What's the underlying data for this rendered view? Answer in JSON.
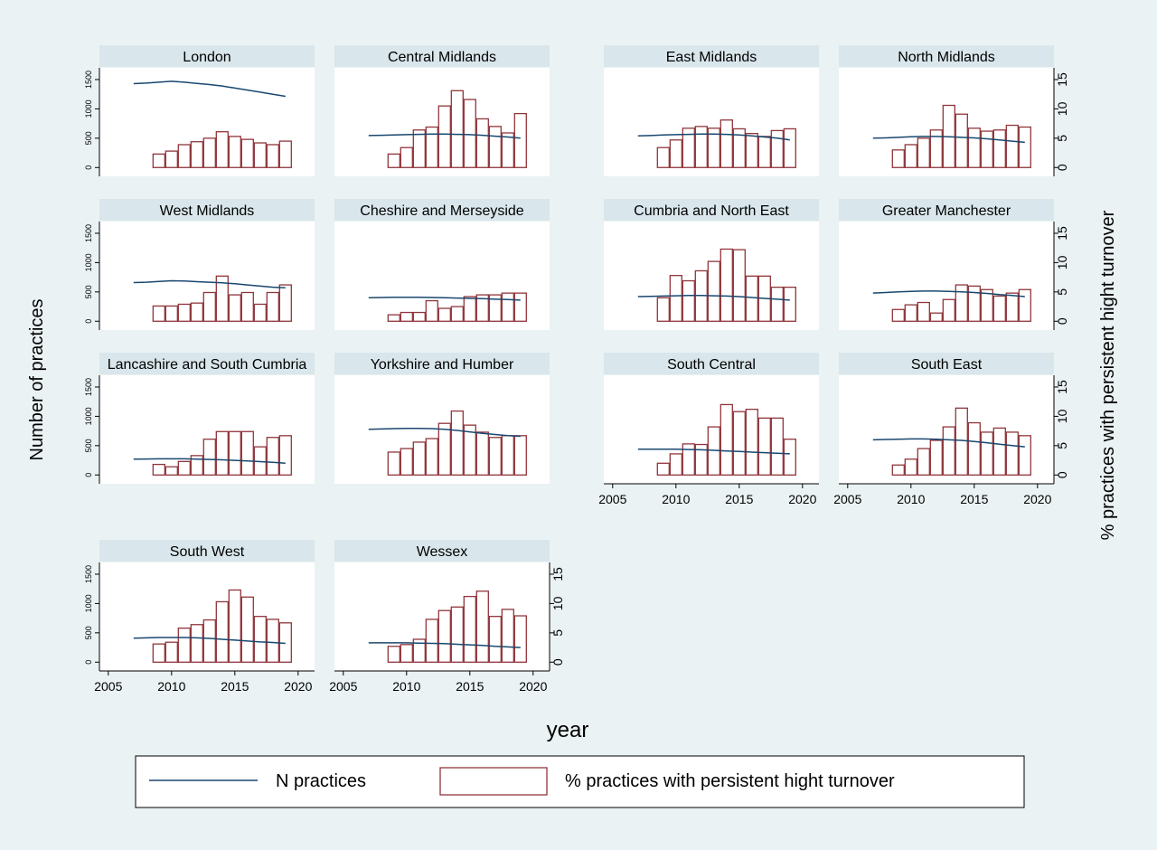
{
  "chart_data": {
    "type": "bar-line-panels",
    "y_label": "Number of practices",
    "y2_label": "% practices with persistent hight turnover",
    "x_label": "year",
    "xlim": [
      2004.3,
      2021.3
    ],
    "xticks": [
      2005,
      2010,
      2015,
      2020
    ],
    "ylim": [
      -150,
      1700
    ],
    "yticks": [
      0,
      500,
      1000,
      1500
    ],
    "y2lim": [
      -1.5,
      17
    ],
    "y2ticks": [
      0,
      5,
      10,
      15
    ],
    "series": [
      {
        "name": "N practices",
        "type": "line",
        "axis": "y",
        "color": "#1a476f",
        "x": [
          2007,
          2008,
          2009,
          2010,
          2011,
          2012,
          2013,
          2014,
          2015,
          2016,
          2017,
          2018,
          2019
        ]
      },
      {
        "name": "% practices with persistent hight turnover",
        "type": "bar",
        "axis": "y2",
        "color": "#90353b",
        "x": [
          2009,
          2010,
          2011,
          2012,
          2013,
          2014,
          2015,
          2016,
          2017,
          2018,
          2019
        ]
      }
    ],
    "panels": [
      {
        "title": "London",
        "values": [
          [
            1430,
            1440,
            1455,
            1470,
            1455,
            1435,
            1415,
            1390,
            1355,
            1320,
            1285,
            1250,
            1215
          ],
          [
            2.3,
            2.8,
            3.9,
            4.4,
            5.0,
            6.1,
            5.3,
            4.8,
            4.2,
            3.9,
            4.5
          ]
        ]
      },
      {
        "title": "Central Midlands",
        "values": [
          [
            545,
            550,
            555,
            560,
            565,
            570,
            570,
            565,
            560,
            550,
            535,
            520,
            500
          ],
          [
            2.3,
            3.4,
            6.4,
            6.9,
            10.5,
            13.1,
            11.6,
            8.3,
            7.0,
            5.9,
            9.2
          ]
        ]
      },
      {
        "title": "East Midlands",
        "values": [
          [
            540,
            545,
            555,
            560,
            565,
            570,
            570,
            565,
            555,
            540,
            520,
            500,
            470
          ],
          [
            3.4,
            4.7,
            6.7,
            7.0,
            6.7,
            8.1,
            6.6,
            5.8,
            5.3,
            6.3,
            6.6
          ]
        ]
      },
      {
        "title": "North Midlands",
        "values": [
          [
            500,
            505,
            515,
            525,
            530,
            530,
            525,
            515,
            505,
            490,
            470,
            450,
            430
          ],
          [
            3.0,
            3.9,
            5.0,
            6.4,
            10.6,
            9.1,
            6.7,
            6.2,
            6.4,
            7.2,
            6.9
          ]
        ]
      },
      {
        "title": "West Midlands",
        "values": [
          [
            660,
            665,
            680,
            690,
            685,
            675,
            665,
            655,
            640,
            620,
            600,
            580,
            570
          ],
          [
            2.6,
            2.6,
            2.9,
            3.1,
            4.9,
            7.7,
            4.5,
            4.9,
            2.9,
            4.9,
            6.2
          ]
        ]
      },
      {
        "title": "Cheshire and Merseyside",
        "values": [
          [
            400,
            405,
            410,
            410,
            410,
            405,
            400,
            395,
            390,
            385,
            375,
            370,
            360
          ],
          [
            1.1,
            1.5,
            1.5,
            3.5,
            2.2,
            2.5,
            4.2,
            4.5,
            4.5,
            4.8,
            4.8
          ]
        ]
      },
      {
        "title": "Cumbria and North East",
        "values": [
          [
            420,
            425,
            430,
            435,
            440,
            440,
            435,
            430,
            420,
            405,
            390,
            375,
            360
          ],
          [
            4.0,
            7.8,
            6.9,
            8.6,
            10.2,
            12.3,
            12.2,
            7.7,
            7.7,
            5.8,
            5.8
          ]
        ]
      },
      {
        "title": "Greater Manchester",
        "values": [
          [
            480,
            490,
            500,
            510,
            515,
            515,
            510,
            500,
            490,
            475,
            455,
            440,
            420
          ],
          [
            2.0,
            2.8,
            3.2,
            1.4,
            3.7,
            6.2,
            6.0,
            5.4,
            4.3,
            4.8,
            5.4
          ]
        ]
      },
      {
        "title": "Lancashire and South Cumbria",
        "values": [
          [
            270,
            272,
            275,
            275,
            275,
            270,
            265,
            258,
            250,
            240,
            228,
            215,
            200
          ],
          [
            1.8,
            1.4,
            2.3,
            3.3,
            6.1,
            7.4,
            7.4,
            7.4,
            4.8,
            6.4,
            6.7
          ]
        ]
      },
      {
        "title": "Yorkshire and Humber",
        "values": [
          [
            780,
            785,
            790,
            795,
            795,
            790,
            780,
            760,
            735,
            710,
            690,
            670,
            660
          ],
          [
            3.9,
            4.5,
            5.6,
            6.2,
            8.8,
            10.9,
            8.5,
            7.3,
            6.4,
            6.7,
            6.7
          ]
        ]
      },
      {
        "title": "South Central",
        "values": [
          [
            440,
            440,
            440,
            440,
            435,
            430,
            420,
            410,
            400,
            390,
            380,
            370,
            360
          ],
          [
            2.0,
            3.6,
            5.3,
            5.2,
            8.2,
            12.0,
            10.8,
            11.2,
            9.7,
            9.7,
            6.1
          ]
        ]
      },
      {
        "title": "South East",
        "values": [
          [
            600,
            605,
            610,
            615,
            615,
            610,
            600,
            590,
            570,
            550,
            525,
            500,
            480
          ],
          [
            1.7,
            2.7,
            4.5,
            5.9,
            8.2,
            11.4,
            8.9,
            7.3,
            8.0,
            7.3,
            6.7
          ]
        ]
      },
      {
        "title": "South West",
        "values": [
          [
            410,
            415,
            420,
            420,
            420,
            415,
            405,
            390,
            375,
            360,
            345,
            335,
            320
          ],
          [
            3.1,
            3.4,
            5.8,
            6.4,
            7.2,
            10.3,
            12.3,
            11.1,
            7.8,
            7.3,
            6.7
          ]
        ]
      },
      {
        "title": "Wessex",
        "values": [
          [
            330,
            330,
            330,
            330,
            325,
            320,
            315,
            305,
            295,
            285,
            270,
            260,
            250
          ],
          [
            2.7,
            3.0,
            3.9,
            7.3,
            8.8,
            9.4,
            11.2,
            12.1,
            7.8,
            9.0,
            7.9
          ]
        ]
      }
    ]
  }
}
